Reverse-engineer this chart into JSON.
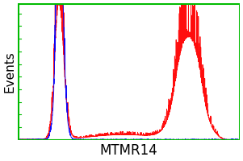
{
  "title": "MTMR14",
  "ylabel": "Events",
  "bg_color": "#ffffff",
  "border_color": "#00bb00",
  "xlim": [
    0.0,
    1.0
  ],
  "ylim": [
    0.0,
    1.08
  ],
  "title_fontsize": 12,
  "ylabel_fontsize": 11
}
